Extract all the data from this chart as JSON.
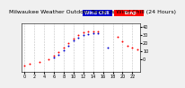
{
  "title": "Milwaukee Weather Outdoor Temp vs Wind Chill (24 Hours)",
  "bg_color": "#f0f0f0",
  "plot_bg": "#ffffff",
  "grid_color": "#bbbbbb",
  "temp_color": "#ff0000",
  "windchill_color": "#0000cc",
  "ylim": [
    -15,
    45
  ],
  "xlim": [
    -0.5,
    23.5
  ],
  "temp_x": [
    0,
    1,
    3,
    5,
    6,
    7,
    8,
    9,
    10,
    11,
    12,
    13,
    14,
    15,
    19,
    20,
    21,
    22,
    23
  ],
  "temp_y": [
    -8,
    -6,
    -3,
    0,
    4,
    9,
    14,
    20,
    26,
    30,
    33,
    34,
    35,
    35,
    28,
    22,
    17,
    14,
    12
  ],
  "wc_x": [
    6,
    7,
    8,
    9,
    10,
    11,
    12,
    13,
    14,
    15,
    17
  ],
  "wc_y": [
    2,
    6,
    11,
    17,
    23,
    27,
    30,
    31,
    32,
    32,
    15
  ],
  "yticks": [
    0,
    10,
    20,
    30,
    40
  ],
  "title_fontsize": 4.5,
  "tick_fontsize": 3.5,
  "legend_fontsize": 3.5
}
